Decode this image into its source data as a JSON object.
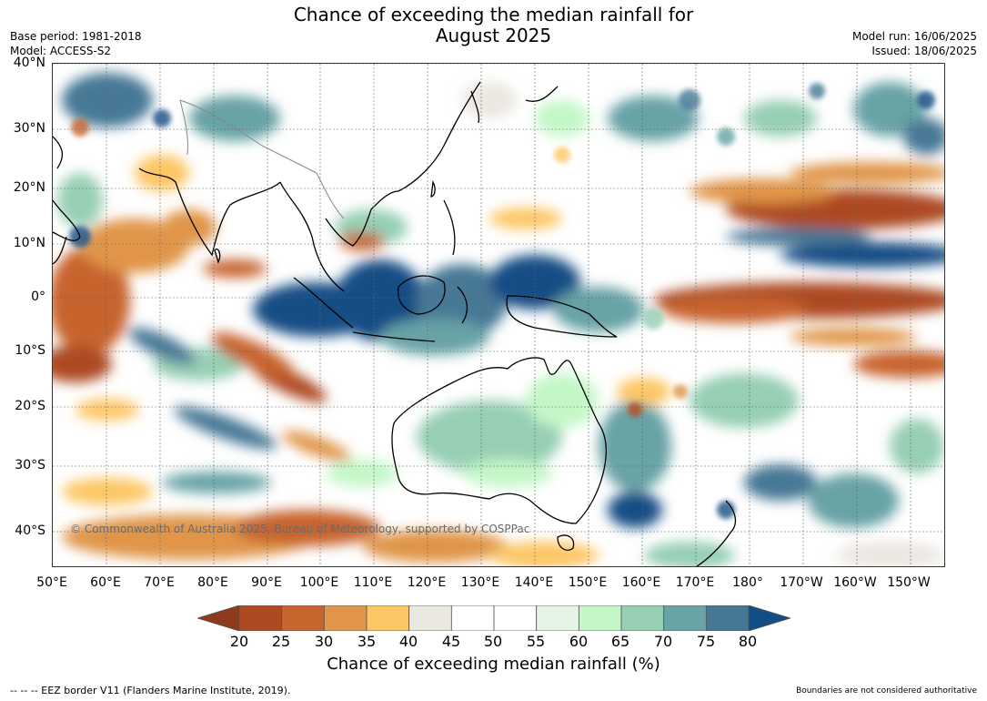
{
  "title": {
    "line1": "Chance of exceeding the median rainfall for",
    "line2": "August 2025"
  },
  "meta_left": {
    "base_period": "Base period: 1981-2018",
    "model": "Model: ACCESS-S2"
  },
  "meta_right": {
    "model_run": "Model run: 16/06/2025",
    "issued": "Issued: 18/06/2025"
  },
  "lat_labels": [
    "40°N",
    "30°N",
    "20°N",
    "10°N",
    "0°",
    "10°S",
    "20°S",
    "30°S",
    "40°S"
  ],
  "lon_labels": [
    "50°E",
    "60°E",
    "70°E",
    "80°E",
    "90°E",
    "100°E",
    "110°E",
    "120°E",
    "130°E",
    "140°E",
    "150°E",
    "160°E",
    "170°E",
    "180°",
    "170°W",
    "160°W",
    "150°W"
  ],
  "copyright": "© Commonwealth of Australia 2025, Bureau of Meteorology, supported by COSPPac",
  "colorbar": {
    "ticks": [
      "20",
      "25",
      "30",
      "35",
      "40",
      "45",
      "50",
      "55",
      "60",
      "65",
      "70",
      "75",
      "80"
    ],
    "colors": [
      "#8e3a1c",
      "#ad4a22",
      "#c8642e",
      "#e0954a",
      "#fdc665",
      "#ebe7e1",
      "#ffffff",
      "#ffffff",
      "#e6f4e7",
      "#c4f7c8",
      "#96cfb4",
      "#68a3a6",
      "#467896",
      "#124e85"
    ],
    "label": "Chance of exceeding median rainfall (%)"
  },
  "footer": {
    "eez": "--  --  -- EEZ border V11 (Flanders Marine Institute, 2019).",
    "boundary": "Boundaries are not considered authoritative"
  }
}
